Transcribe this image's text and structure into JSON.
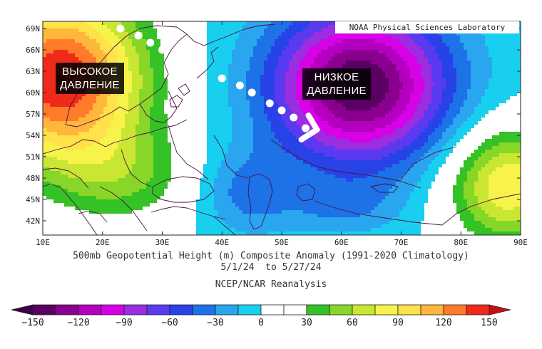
{
  "credit": "NOAA Physical Sciences Laboratory",
  "labels": {
    "high": [
      "ВЫСОКОЕ",
      "ДАВЛЕНИЕ"
    ],
    "low": [
      "НИЗКОЕ",
      "ДАВЛЕНИЕ"
    ]
  },
  "map": {
    "lat_range": [
      40,
      70
    ],
    "lon_range": [
      10,
      90
    ],
    "lat_ticks": [
      "69N",
      "66N",
      "63N",
      "60N",
      "57N",
      "54N",
      "51N",
      "48N",
      "45N",
      "42N"
    ],
    "lon_ticks": [
      "10E",
      "20E",
      "30E",
      "40E",
      "50E",
      "60E",
      "70E",
      "80E",
      "90E"
    ],
    "high_center": {
      "lon": 13,
      "lat": 62,
      "anomaly_m": 150
    },
    "low_center": {
      "lon": 63,
      "lat": 61,
      "anomaly_m": -150
    },
    "secondary_high": {
      "lon": 88,
      "lat": 47,
      "anomaly_m": 90
    },
    "path_arrow": [
      {
        "lon": 23,
        "lat": 69
      },
      {
        "lon": 26,
        "lat": 68
      },
      {
        "lon": 28,
        "lat": 67
      },
      {
        "lon": 30,
        "lat": 66
      },
      {
        "lon": 32,
        "lat": 65
      },
      {
        "lon": 34,
        "lat": 64
      },
      {
        "lon": 40,
        "lat": 62
      },
      {
        "lon": 43,
        "lat": 61
      },
      {
        "lon": 45,
        "lat": 60
      },
      {
        "lon": 48,
        "lat": 58.5
      },
      {
        "lon": 50,
        "lat": 57.5
      },
      {
        "lon": 52,
        "lat": 56.5
      },
      {
        "lon": 54,
        "lat": 55
      }
    ]
  },
  "captions": {
    "title": "500mb Geopotential Height (m) Composite Anomaly (1991-2020 Climatology)",
    "dates": "5/1/24  to 5/27/24",
    "source": "NCEP/NCAR Reanalysis"
  },
  "colorbar": {
    "ticks": [
      "-150",
      "-120",
      "-90",
      "-60",
      "-30",
      "0",
      "30",
      "60",
      "90",
      "120",
      "150"
    ],
    "bins": [
      {
        "from": -150,
        "to": -135,
        "color": "#5a0064"
      },
      {
        "from": -135,
        "to": -120,
        "color": "#8a008e"
      },
      {
        "from": -120,
        "to": -105,
        "color": "#b400be"
      },
      {
        "from": -105,
        "to": -90,
        "color": "#d800e6"
      },
      {
        "from": -90,
        "to": -75,
        "color": "#9a2ee0"
      },
      {
        "from": -75,
        "to": -60,
        "color": "#5a3af0"
      },
      {
        "from": -60,
        "to": -45,
        "color": "#2742e6"
      },
      {
        "from": -45,
        "to": -30,
        "color": "#1d72e8"
      },
      {
        "from": -30,
        "to": -15,
        "color": "#2aa5ef"
      },
      {
        "from": -15,
        "to": 0,
        "color": "#18cfef"
      },
      {
        "from": 0,
        "to": 15,
        "color": "#ffffff"
      },
      {
        "from": 15,
        "to": 30,
        "color": "#ffffff"
      },
      {
        "from": 30,
        "to": 45,
        "color": "#34c227"
      },
      {
        "from": 45,
        "to": 60,
        "color": "#88d628"
      },
      {
        "from": 60,
        "to": 75,
        "color": "#c9e632"
      },
      {
        "from": 75,
        "to": 90,
        "color": "#f7f34a"
      },
      {
        "from": 90,
        "to": 105,
        "color": "#ffe14a"
      },
      {
        "from": 105,
        "to": 120,
        "color": "#ffb63c"
      },
      {
        "from": 120,
        "to": 135,
        "color": "#ff7a2a"
      },
      {
        "from": 135,
        "to": 150,
        "color": "#ef2a1a"
      }
    ],
    "under_color": "#3a0046",
    "over_color": "#c81010"
  }
}
